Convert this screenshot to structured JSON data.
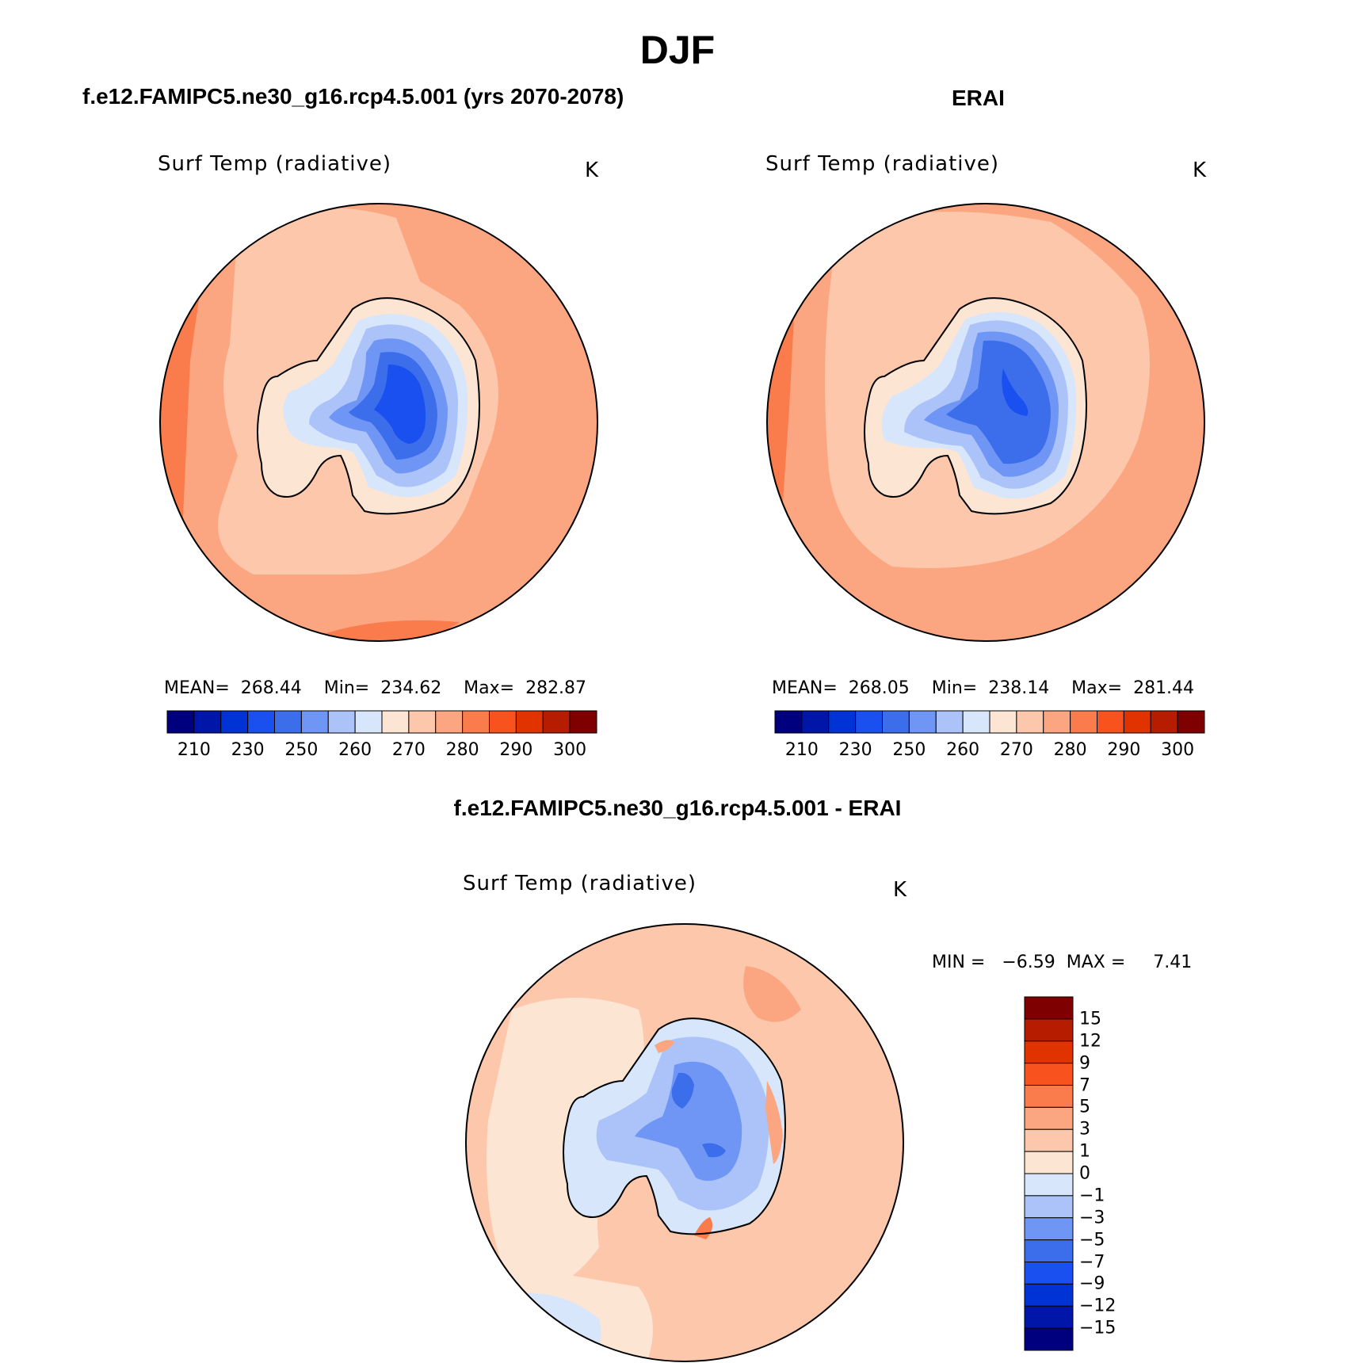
{
  "figure": {
    "season": "DJF",
    "panels": [
      {
        "id": "model",
        "title": "f.e12.FAMIPC5.ne30_g16.rcp4.5.001 (yrs 2070-2078)",
        "variable": "Surf Temp (radiative)",
        "units": "K",
        "stats_text": "MEAN=  268.44    Min=  234.62    Max=  282.87",
        "mean": 268.44,
        "min": 234.62,
        "max": 282.87
      },
      {
        "id": "obs",
        "title": "ERAI",
        "variable": "Surf Temp (radiative)",
        "units": "K",
        "stats_text": "MEAN=  268.05    Min=  238.14    Max=  281.44",
        "mean": 268.05,
        "min": 238.14,
        "max": 281.44
      },
      {
        "id": "diff",
        "title": "f.e12.FAMIPC5.ne30_g16.rcp4.5.001 - ERAI",
        "variable": "Surf Temp (radiative)",
        "units": "K",
        "stats_text": "MIN =   −6.59  MAX =     7.41",
        "min": -6.59,
        "max": 7.41
      }
    ],
    "abs_colorbar": {
      "colors": [
        "#00007f",
        "#0016a8",
        "#0033d6",
        "#1a4ff0",
        "#3c6eec",
        "#7096f5",
        "#abc3f9",
        "#d7e6fb",
        "#fde5d4",
        "#fcc7aa",
        "#fba681",
        "#fa7b4c",
        "#f8521e",
        "#e03300",
        "#b51c00",
        "#7f0000"
      ],
      "tick_labels": [
        "210",
        "230",
        "250",
        "260",
        "270",
        "280",
        "290",
        "300"
      ]
    },
    "diff_colorbar": {
      "colors": [
        "#7f0000",
        "#b51c00",
        "#e03300",
        "#f8521e",
        "#fa7b4c",
        "#fba681",
        "#fcc7aa",
        "#fde5d4",
        "#d7e6fb",
        "#abc3f9",
        "#7096f5",
        "#3c6eec",
        "#1a4ff0",
        "#0033d6",
        "#0016a8",
        "#00007f"
      ],
      "tick_labels": [
        "15",
        "12",
        "9",
        "7",
        "5",
        "3",
        "1",
        "0",
        "−1",
        "−3",
        "−5",
        "−7",
        "−9",
        "−12",
        "−15"
      ]
    }
  }
}
